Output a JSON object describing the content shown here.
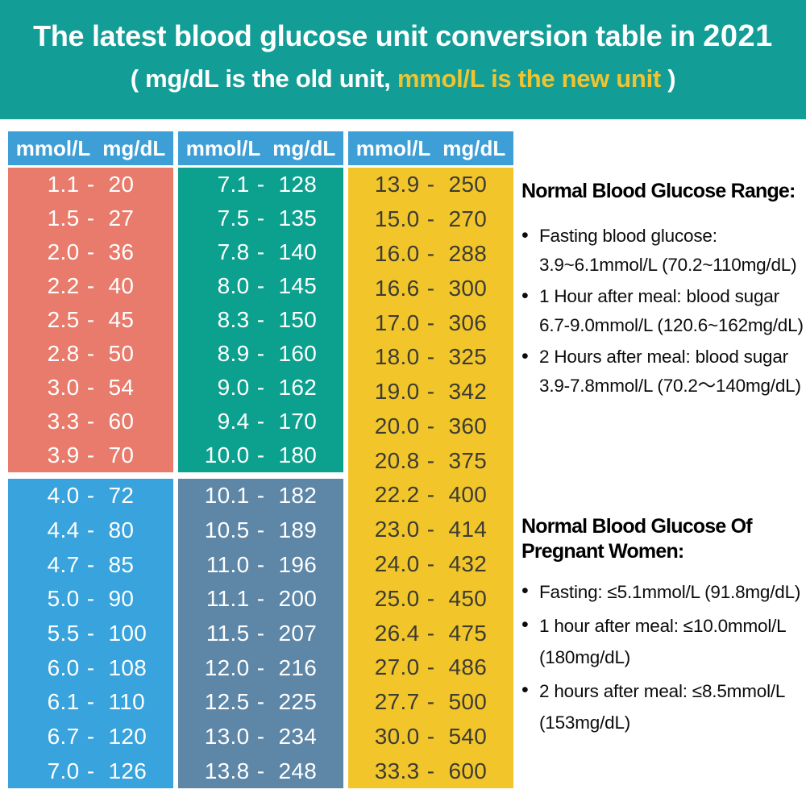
{
  "banner": {
    "bg_color": "#129D96",
    "text_color": "#FFFFFF",
    "highlight_color": "#F0C431",
    "title_prefix": "The latest blood glucose unit conversion table in ",
    "title_year": "2021",
    "subtitle_open": "( mg/dL is the old unit, ",
    "subtitle_highlight": "mmol/L is the new unit",
    "subtitle_close": " )"
  },
  "chart_data": {
    "type": "table",
    "title": "The latest blood glucose unit conversion table in 2021",
    "columns": [
      "mmol/L",
      "mg/dL"
    ],
    "separator": "-",
    "header_bg_color": "#3E9FD7",
    "header_text_color": "#FFFFFF",
    "visual_columns": [
      [
        "salmon",
        "blue"
      ],
      [
        "teal",
        "steel"
      ],
      [
        "yellow"
      ]
    ],
    "sections": [
      {
        "id": "salmon",
        "color": "#E87B6C",
        "text_color": "#FFFFFF",
        "rows": [
          [
            "1.1",
            "20"
          ],
          [
            "1.5",
            "27"
          ],
          [
            "2.0",
            "36"
          ],
          [
            "2.2",
            "40"
          ],
          [
            "2.5",
            "45"
          ],
          [
            "2.8",
            "50"
          ],
          [
            "3.0",
            "54"
          ],
          [
            "3.3",
            "60"
          ],
          [
            "3.9",
            "70"
          ]
        ]
      },
      {
        "id": "blue",
        "color": "#38A3DC",
        "text_color": "#FFFFFF",
        "rows": [
          [
            "4.0",
            "72"
          ],
          [
            "4.4",
            "80"
          ],
          [
            "4.7",
            "85"
          ],
          [
            "5.0",
            "90"
          ],
          [
            "5.5",
            "100"
          ],
          [
            "6.0",
            "108"
          ],
          [
            "6.1",
            "110"
          ],
          [
            "6.7",
            "120"
          ],
          [
            "7.0",
            "126"
          ]
        ]
      },
      {
        "id": "teal",
        "color": "#0CA18E",
        "text_color": "#FFFFFF",
        "rows": [
          [
            "7.1",
            "128"
          ],
          [
            "7.5",
            "135"
          ],
          [
            "7.8",
            "140"
          ],
          [
            "8.0",
            "145"
          ],
          [
            "8.3",
            "150"
          ],
          [
            "8.9",
            "160"
          ],
          [
            "9.0",
            "162"
          ],
          [
            "9.4",
            "170"
          ],
          [
            "10.0",
            "180"
          ]
        ]
      },
      {
        "id": "steel",
        "color": "#5D86A7",
        "text_color": "#FFFFFF",
        "rows": [
          [
            "10.1",
            "182"
          ],
          [
            "10.5",
            "189"
          ],
          [
            "11.0",
            "196"
          ],
          [
            "11.1",
            "200"
          ],
          [
            "11.5",
            "207"
          ],
          [
            "12.0",
            "216"
          ],
          [
            "12.5",
            "225"
          ],
          [
            "13.0",
            "234"
          ],
          [
            "13.8",
            "248"
          ]
        ]
      },
      {
        "id": "yellow",
        "color": "#F2C62B",
        "text_color": "#3D3C33",
        "rows": [
          [
            "13.9",
            "250"
          ],
          [
            "15.0",
            "270"
          ],
          [
            "16.0",
            "288"
          ],
          [
            "16.6",
            "300"
          ],
          [
            "17.0",
            "306"
          ],
          [
            "18.0",
            "325"
          ],
          [
            "19.0",
            "342"
          ],
          [
            "20.0",
            "360"
          ],
          [
            "20.8",
            "375"
          ],
          [
            "22.2",
            "400"
          ],
          [
            "23.0",
            "414"
          ],
          [
            "24.0",
            "432"
          ],
          [
            "25.0",
            "450"
          ],
          [
            "26.4",
            "475"
          ],
          [
            "27.0",
            "486"
          ],
          [
            "27.7",
            "500"
          ],
          [
            "30.0",
            "540"
          ],
          [
            "33.3",
            "600"
          ]
        ]
      }
    ]
  },
  "info": {
    "sections": [
      {
        "title": "Normal Blood Glucose Range:",
        "bullets": [
          {
            "lines": [
              "Fasting blood glucose:",
              "3.9~6.1mmol/L (70.2~110mg/dL)"
            ]
          },
          {
            "lines": [
              "1 Hour after meal: blood sugar",
              "6.7-9.0mmol/L (120.6~162mg/dL)"
            ]
          },
          {
            "lines": [
              "2 Hours after meal: blood sugar",
              "3.9-7.8mmol/L (70.2～140mg/dL)"
            ]
          }
        ]
      },
      {
        "title": "Normal Blood Glucose Of Pregnant Women:",
        "bullets": [
          {
            "lines": [
              "Fasting: ≤5.1mmol/L (91.8mg/dL)"
            ]
          },
          {
            "lines": [
              "1 hour after meal: ≤10.0mmol/L",
              "(180mg/dL)"
            ]
          },
          {
            "lines": [
              "2 hours after meal: ≤8.5mmol/L",
              "(153mg/dL)"
            ]
          }
        ]
      }
    ]
  }
}
